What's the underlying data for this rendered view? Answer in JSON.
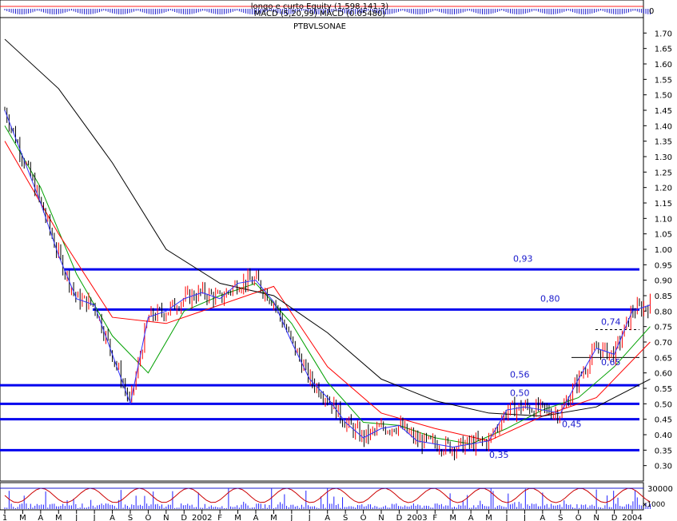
{
  "header": {
    "indicator_line1": "longo e curto Equity (1,598,141.3)",
    "indicator_line2": "MACD (5,20,99) MACD (0.05480)",
    "indicator_axis_label": "0",
    "symbol": "PTBVLSONAE"
  },
  "volume_axis": {
    "tick": "30000",
    "unit": "x1000"
  },
  "colors": {
    "price": "#000000",
    "up_bar": "#ff0000",
    "level_line": "#0000ee",
    "ma_fast": "#00a000",
    "ma_mid": "#3030ff",
    "ma_slow": "#ff0000",
    "ma_long": "#000000",
    "grid": "#000000"
  },
  "chart_data": {
    "type": "line",
    "title": "PTBVLSONAE",
    "ylim": [
      0.25,
      1.75
    ],
    "y_ticks": [
      "1.70",
      "1.65",
      "1.60",
      "1.55",
      "1.50",
      "1.45",
      "1.40",
      "1.35",
      "1.30",
      "1.25",
      "1.20",
      "1.15",
      "1.10",
      "1.05",
      "1.00",
      "0.95",
      "0.90",
      "0.85",
      "0.80",
      "0.75",
      "0.70",
      "0.65",
      "0.60",
      "0.55",
      "0.50",
      "0.45",
      "0.40",
      "0.35",
      "0.30"
    ],
    "x_ticks": [
      "1",
      "M",
      "A",
      "M",
      "J",
      "J",
      "A",
      "S",
      "O",
      "N",
      "D",
      "2002",
      "F",
      "M",
      "A",
      "M",
      "J",
      "J",
      "A",
      "S",
      "O",
      "N",
      "D",
      "2003",
      "F",
      "M",
      "A",
      "M",
      "J",
      "J",
      "A",
      "S",
      "O",
      "N",
      "D",
      "2004"
    ],
    "horizontal_levels": [
      0.935,
      0.805,
      0.56,
      0.5,
      0.45,
      0.35
    ],
    "level_labels": [
      "0,93",
      "0,80",
      "0,56",
      "0,50",
      "0,45",
      "0,35",
      "0,74",
      "0,65"
    ],
    "series": [
      {
        "x": [
          0,
          1,
          2,
          3,
          4,
          5,
          6,
          7,
          8,
          9,
          10,
          11,
          12,
          13,
          14,
          15,
          16,
          17,
          18,
          19,
          20,
          21,
          22,
          23,
          24,
          25,
          26,
          27,
          28,
          29,
          30,
          31,
          32,
          33,
          34,
          35,
          36
        ],
        "values": [
          1.45,
          1.3,
          1.15,
          0.98,
          0.84,
          0.82,
          0.66,
          0.5,
          0.78,
          0.8,
          0.84,
          0.86,
          0.84,
          0.89,
          0.9,
          0.83,
          0.7,
          0.58,
          0.52,
          0.44,
          0.39,
          0.42,
          0.43,
          0.38,
          0.37,
          0.36,
          0.37,
          0.38,
          0.48,
          0.49,
          0.48,
          0.47,
          0.58,
          0.68,
          0.66,
          0.8,
          0.82
        ]
      },
      {
        "x": [
          0,
          2,
          4,
          6,
          8,
          10,
          12,
          14,
          16,
          18,
          20,
          22,
          24,
          26,
          28,
          30,
          32,
          34,
          36
        ],
        "values": [
          1.4,
          1.2,
          0.92,
          0.72,
          0.6,
          0.8,
          0.85,
          0.89,
          0.76,
          0.57,
          0.44,
          0.43,
          0.39,
          0.37,
          0.42,
          0.48,
          0.52,
          0.62,
          0.75
        ]
      },
      {
        "x": [
          0,
          3,
          6,
          9,
          12,
          15,
          18,
          21,
          24,
          27,
          30,
          33,
          36
        ],
        "values": [
          1.35,
          1.05,
          0.78,
          0.76,
          0.82,
          0.88,
          0.62,
          0.47,
          0.42,
          0.38,
          0.46,
          0.52,
          0.7
        ]
      },
      {
        "x": [
          0,
          3,
          6,
          9,
          12,
          15,
          18,
          21,
          24,
          27,
          30,
          33,
          36
        ],
        "values": [
          1.68,
          1.52,
          1.28,
          1.0,
          0.89,
          0.85,
          0.73,
          0.58,
          0.51,
          0.47,
          0.46,
          0.49,
          0.58
        ]
      }
    ]
  }
}
